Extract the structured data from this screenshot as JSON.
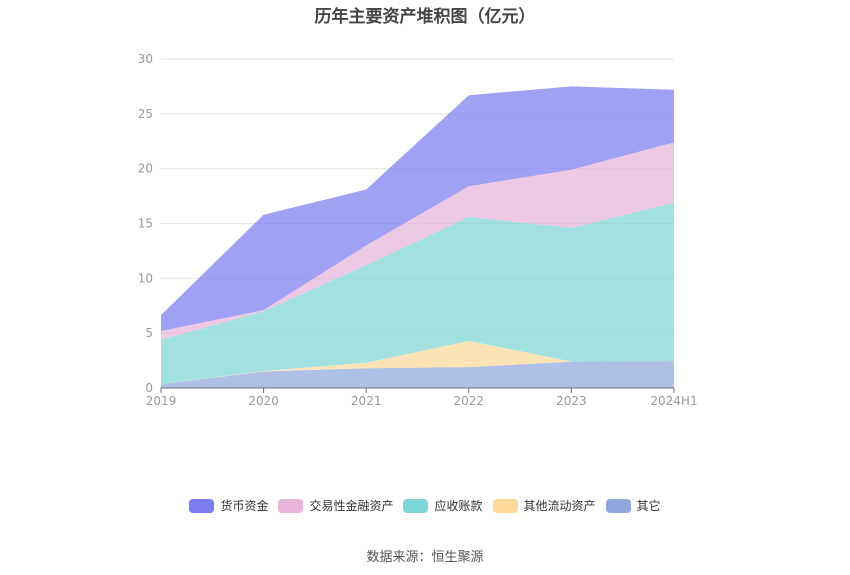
{
  "title": "历年主要资产堆积图（亿元）",
  "source": "数据来源：恒生聚源",
  "chart_data": {
    "type": "area",
    "stacked": true,
    "title": "历年主要资产堆积图（亿元）",
    "xlabel": "",
    "ylabel": "",
    "categories": [
      "2019",
      "2020",
      "2021",
      "2022",
      "2023",
      "2024H1"
    ],
    "ylim": [
      0,
      30
    ],
    "yticks": [
      0,
      5,
      10,
      15,
      20,
      25,
      30
    ],
    "grid": true,
    "legend_position": "bottom",
    "series": [
      {
        "name": "其它",
        "color": "#8fa8dc",
        "values": [
          0.35,
          1.5,
          1.8,
          1.9,
          2.4,
          2.45
        ]
      },
      {
        "name": "其他流动资产",
        "color": "#fdd89b",
        "values": [
          0.0,
          0.05,
          0.5,
          2.4,
          0.0,
          0.0
        ]
      },
      {
        "name": "应收账款",
        "color": "#7fd6d6",
        "values": [
          4.05,
          5.45,
          8.9,
          11.3,
          12.2,
          14.45
        ]
      },
      {
        "name": "交易性金融资产",
        "color": "#e8b4d8",
        "values": [
          0.8,
          0.1,
          1.8,
          2.8,
          5.3,
          5.5
        ]
      },
      {
        "name": "货币资金",
        "color": "#7b7cf0",
        "values": [
          1.45,
          8.7,
          5.1,
          8.3,
          7.6,
          4.8
        ]
      }
    ]
  },
  "legend": [
    {
      "label": "货币资金",
      "color": "#7b7cf0"
    },
    {
      "label": "交易性金融资产",
      "color": "#e8b4d8"
    },
    {
      "label": "应收账款",
      "color": "#7fd6d6"
    },
    {
      "label": "其他流动资产",
      "color": "#fdd89b"
    },
    {
      "label": "其它",
      "color": "#8fa8dc"
    }
  ]
}
